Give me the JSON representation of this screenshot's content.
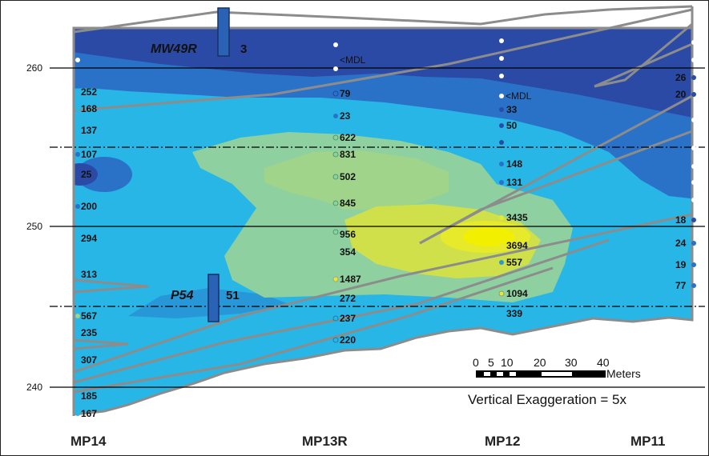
{
  "elevations": [
    "260",
    "250",
    "240"
  ],
  "wells": [
    "MP14",
    "MP13R",
    "MP12",
    "MP11"
  ],
  "monitoring_wells": [
    {
      "name": "MW49R",
      "value": "3"
    },
    {
      "name": "P54",
      "value": "51"
    }
  ],
  "mp14_values": [
    "252",
    "168",
    "137",
    "107",
    "25",
    "200",
    "294",
    "313",
    "567",
    "235",
    "307",
    "185",
    "167"
  ],
  "mp13r_values": [
    "<MDL",
    "79",
    "23",
    "622",
    "831",
    "502",
    "845",
    "956",
    "354",
    "1487",
    "272",
    "237",
    "220"
  ],
  "mp12_values": [
    "<MDL",
    "33",
    "50",
    "148",
    "131",
    "3435",
    "3694",
    "557",
    "1094",
    "339"
  ],
  "mp11_values": [
    "26",
    "20",
    "18",
    "24",
    "19",
    "77"
  ],
  "scale_bar": {
    "ticks": [
      "0",
      "5",
      "10",
      "20",
      "30",
      "40"
    ],
    "unit": "Meters"
  },
  "exaggeration": "Vertical Exaggeration = 5x",
  "colors": {
    "navy": "#2b4aa6",
    "blue": "#2a72c8",
    "cyan": "#27b6e6",
    "green": "#8ed0a0",
    "yellow": "#e6ea2a"
  }
}
